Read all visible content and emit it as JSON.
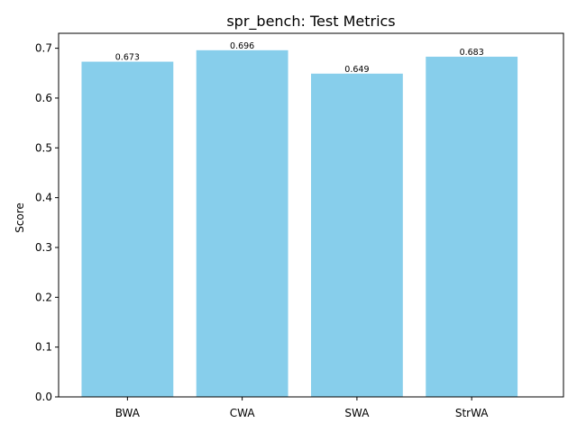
{
  "chart_data": {
    "type": "bar",
    "title": "spr_bench: Test Metrics",
    "xlabel": "",
    "ylabel": "Score",
    "categories": [
      "BWA",
      "CWA",
      "SWA",
      "StrWA"
    ],
    "values": [
      0.673,
      0.696,
      0.649,
      0.683
    ],
    "value_labels": [
      "0.673",
      "0.696",
      "0.649",
      "0.683"
    ],
    "ylim": [
      0,
      0.73
    ],
    "yticks": [
      0.0,
      0.1,
      0.2,
      0.3,
      0.4,
      0.5,
      0.6,
      0.7
    ],
    "ytick_labels": [
      "0.0",
      "0.1",
      "0.2",
      "0.3",
      "0.4",
      "0.5",
      "0.6",
      "0.7"
    ],
    "bar_color": "#87ceeb",
    "grid": false,
    "legend": "none"
  }
}
